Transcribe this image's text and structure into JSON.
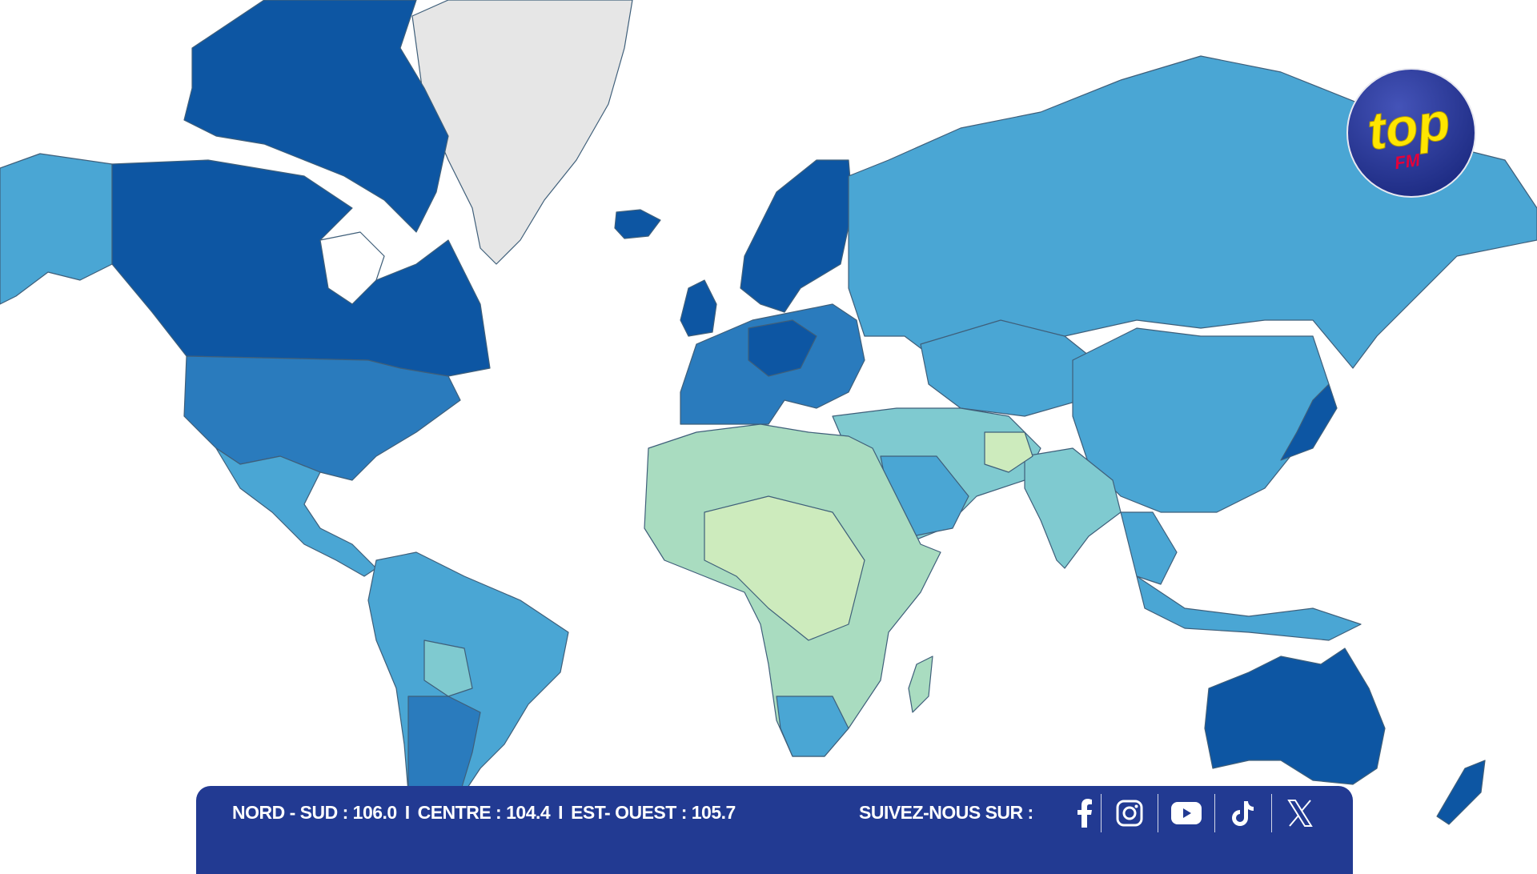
{
  "map": {
    "colors": {
      "ocean": "#ffffff",
      "greenland": "#e6e6e6",
      "darkest": "#0d56a3",
      "dark": "#2a7bbd",
      "medium": "#4aa6d4",
      "light": "#7fcad0",
      "lighter": "#a9dcc0",
      "lightest": "#cdebbd"
    }
  },
  "logo": {
    "text": "top",
    "subtext": "FM",
    "bg_color": "#2a3a9a",
    "text_color": "#ffe600",
    "sub_color": "#e4003a"
  },
  "banner": {
    "frequencies": [
      {
        "label": "NORD - SUD : 106.0"
      },
      {
        "label": "CENTRE : 104.4"
      },
      {
        "label": "EST- OUEST : 105.7"
      }
    ],
    "separator": "I",
    "follow_label": "SUIVEZ-NOUS SUR :",
    "socials": [
      {
        "icon": "facebook-icon"
      },
      {
        "icon": "instagram-icon"
      },
      {
        "icon": "youtube-icon"
      },
      {
        "icon": "tiktok-icon"
      },
      {
        "icon": "x-icon"
      }
    ],
    "color": "#223a92"
  }
}
